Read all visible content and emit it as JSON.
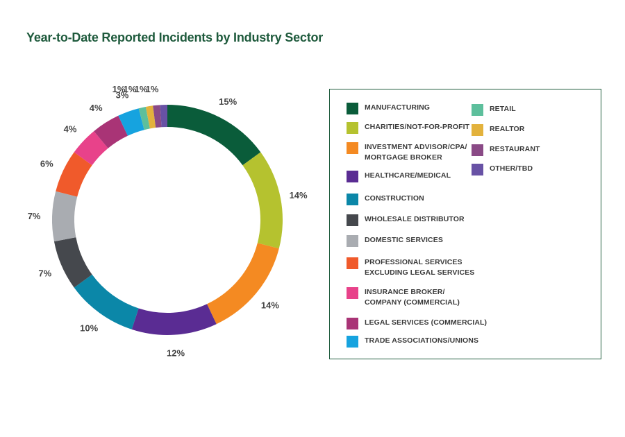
{
  "chart_data": {
    "type": "pie",
    "title": "Year-to-Date Reported Incidents by Industry Sector",
    "donut": true,
    "legend_position": "right",
    "slices": [
      {
        "label": "MANUFACTURING",
        "value": 15,
        "display": "15%",
        "color": "#0a5c3a"
      },
      {
        "label": "CHARITIES/NOT-FOR-PROFIT",
        "value": 14,
        "display": "14%",
        "color": "#b5c22f"
      },
      {
        "label": "INVESTMENT ADVISOR/CPA/ MORTGAGE BROKER",
        "value": 14,
        "display": "14%",
        "color": "#f48a22"
      },
      {
        "label": "HEALTHCARE/MEDICAL",
        "value": 12,
        "display": "12%",
        "color": "#5a2c93"
      },
      {
        "label": "CONSTRUCTION",
        "value": 10,
        "display": "10%",
        "color": "#0b87a8"
      },
      {
        "label": "WHOLESALE DISTRIBUTOR",
        "value": 7,
        "display": "7%",
        "color": "#45484d"
      },
      {
        "label": "DOMESTIC SERVICES",
        "value": 7,
        "display": "7%",
        "color": "#a9acb1"
      },
      {
        "label": "PROFESSIONAL SERVICES EXCLUDING LEGAL SERVICES",
        "value": 6,
        "display": "6%",
        "color": "#f05a2b"
      },
      {
        "label": "INSURANCE BROKER/ COMPANY (COMMERCIAL)",
        "value": 4,
        "display": "4%",
        "color": "#e8428a"
      },
      {
        "label": "LEGAL SERVICES (COMMERCIAL)",
        "value": 4,
        "display": "4%",
        "color": "#a93476"
      },
      {
        "label": "TRADE ASSOCIATIONS/UNIONS",
        "value": 3,
        "display": "3%",
        "color": "#16a3df"
      },
      {
        "label": "RETAIL",
        "value": 1,
        "display": "1%",
        "color": "#5dbf9c"
      },
      {
        "label": "REALTOR",
        "value": 1,
        "display": "1%",
        "color": "#e3b23c"
      },
      {
        "label": "RESTAURANT",
        "value": 1,
        "display": "1%",
        "color": "#8a4a86"
      },
      {
        "label": "OTHER/TBD",
        "value": 1,
        "display": "1%",
        "color": "#6852a5"
      }
    ]
  },
  "legend": {
    "items": [
      {
        "line1": "MANUFACTURING",
        "line2": ""
      },
      {
        "line1": "CHARITIES/NOT-FOR-PROFIT",
        "line2": ""
      },
      {
        "line1": "INVESTMENT ADVISOR/CPA/",
        "line2": "MORTGAGE BROKER"
      },
      {
        "line1": "HEALTHCARE/MEDICAL",
        "line2": ""
      },
      {
        "line1": "CONSTRUCTION",
        "line2": ""
      },
      {
        "line1": "WHOLESALE DISTRIBUTOR",
        "line2": ""
      },
      {
        "line1": "DOMESTIC SERVICES",
        "line2": ""
      },
      {
        "line1": "PROFESSIONAL SERVICES",
        "line2": "EXCLUDING LEGAL SERVICES"
      },
      {
        "line1": "INSURANCE BROKER/",
        "line2": "COMPANY (COMMERCIAL)"
      },
      {
        "line1": "LEGAL SERVICES (COMMERCIAL)",
        "line2": ""
      },
      {
        "line1": "TRADE ASSOCIATIONS/UNIONS",
        "line2": ""
      },
      {
        "line1": "RETAIL",
        "line2": ""
      },
      {
        "line1": "REALTOR",
        "line2": ""
      },
      {
        "line1": "RESTAURANT",
        "line2": ""
      },
      {
        "line1": "OTHER/TBD",
        "line2": ""
      }
    ]
  }
}
